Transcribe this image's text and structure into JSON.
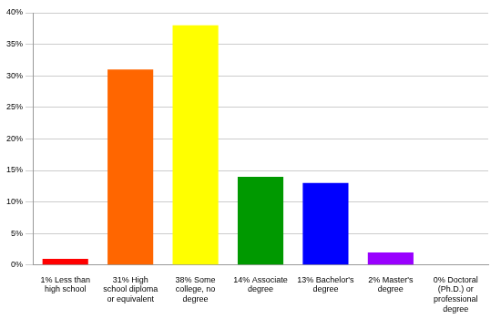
{
  "chart_data": {
    "type": "bar",
    "categories": [
      "1% Less than high school",
      "31% High school diploma or equivalent",
      "38% Some college, no degree",
      "14% Associate degree",
      "13% Bachelor's degree",
      "2% Master's degree",
      "0% Doctoral (Ph.D.) or professional degree"
    ],
    "values": [
      1,
      31,
      38,
      14,
      13,
      2,
      0
    ],
    "colors": [
      "#ff0000",
      "#ff6600",
      "#ffff00",
      "#009900",
      "#0000ff",
      "#9900ff",
      "#ff00ff"
    ],
    "ylim": [
      0,
      40
    ],
    "yticks": [
      {
        "value": 0,
        "label": "0%"
      },
      {
        "value": 5,
        "label": "5%"
      },
      {
        "value": 10,
        "label": "10%"
      },
      {
        "value": 15,
        "label": "15%"
      },
      {
        "value": 20,
        "label": "20%"
      },
      {
        "value": 25,
        "label": "25%"
      },
      {
        "value": 30,
        "label": "30%"
      },
      {
        "value": 35,
        "label": "35%"
      },
      {
        "value": 40,
        "label": "40%"
      }
    ],
    "grid": true
  }
}
